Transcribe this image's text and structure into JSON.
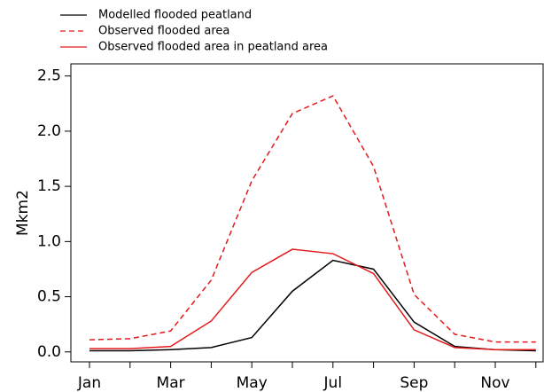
{
  "chart_data": {
    "type": "line",
    "y_label": "Mkm2",
    "categories": [
      "Jan",
      null,
      "Mar",
      null,
      "May",
      null,
      "Jul",
      null,
      "Sep",
      null,
      "Nov",
      null
    ],
    "series": [
      {
        "name": "Modelled flooded peatland",
        "color": "#000000",
        "dash": "solid",
        "values": [
          0.01,
          0.01,
          0.02,
          0.04,
          0.13,
          0.55,
          0.83,
          0.75,
          0.27,
          0.05,
          0.02,
          0.01
        ]
      },
      {
        "name": "Observed flooded area",
        "color": "#e31a1c",
        "dash": "dashed",
        "values": [
          0.11,
          0.12,
          0.19,
          0.65,
          1.55,
          2.16,
          2.32,
          1.68,
          0.52,
          0.16,
          0.09,
          0.09
        ]
      },
      {
        "name": "Observed flooded area in peatland area",
        "color": "#e31a1c",
        "dash": "solid",
        "values": [
          0.03,
          0.03,
          0.05,
          0.28,
          0.72,
          0.93,
          0.89,
          0.71,
          0.2,
          0.04,
          0.02,
          0.02
        ]
      }
    ],
    "ylim": [
      -0.09,
      2.61
    ],
    "yticks": [
      {
        "value": 0,
        "label": "0.0"
      },
      0.5,
      {
        "value": 1,
        "label": "1.0"
      },
      1.5,
      {
        "value": 2,
        "label": "2.0"
      },
      2.5
    ],
    "grid": false
  }
}
